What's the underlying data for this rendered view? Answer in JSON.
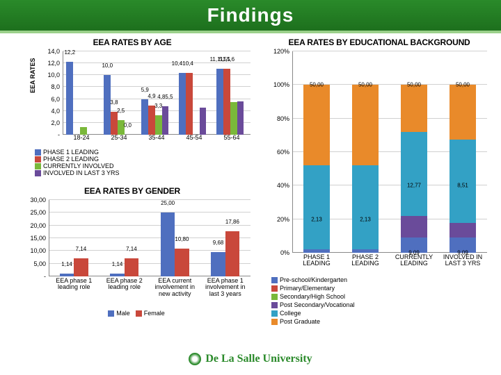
{
  "page_title": "Findings",
  "footer_text": "De La Salle University",
  "series_colors": [
    "#4f6fbf",
    "#c9483b",
    "#7ab83a",
    "#6a4b9a",
    "#33a1c5",
    "#e98a2a"
  ],
  "patterns": [
    "solid",
    "solid",
    "solid",
    "solid",
    "solid",
    "solid"
  ],
  "chart_age": {
    "title": "EEA RATES BY AGE",
    "type": "bar",
    "ylabel": "EEA RATES",
    "ylim": [
      0,
      14
    ],
    "yticks": [
      "-",
      "2,0",
      "4,0",
      "6,0",
      "8,0",
      "10,0",
      "12,0",
      "14,0"
    ],
    "categories": [
      "18-24",
      "25-34",
      "35-44",
      "45-54",
      "55-64"
    ],
    "series": [
      "PHASE 1 LEADING",
      "PHASE 2 LEADING",
      "CURRENTLY INVOLVED",
      "INVOLVED IN LAST 3 YRS"
    ],
    "data": [
      [
        12.2,
        null,
        1.3,
        null
      ],
      [
        10.0,
        3.8,
        2.5,
        0.0
      ],
      [
        5.9,
        4.9,
        3.3,
        4.8
      ],
      [
        10.4,
        10.4,
        null,
        4.5
      ],
      [
        11.1,
        11.1,
        5.5,
        5.6
      ]
    ],
    "labels_over": [
      [
        [
          "12,2"
        ]
      ],
      [
        [
          "10,0"
        ],
        [
          "3,8"
        ],
        [
          "2,5"
        ],
        [
          "0,0"
        ]
      ],
      [
        [
          "5,9"
        ],
        [
          "4,9"
        ],
        [
          "3,3"
        ],
        [
          "4,85,5"
        ]
      ],
      [
        [
          "10,410,4"
        ]
      ],
      [
        [
          "11,111,1"
        ],
        [
          "5,55,6"
        ]
      ]
    ]
  },
  "chart_gender": {
    "title": "EEA RATES BY GENDER",
    "type": "bar",
    "ylim": [
      0,
      30
    ],
    "yticks": [
      "-",
      "5,00",
      "10,00",
      "15,00",
      "20,00",
      "25,00",
      "30,00"
    ],
    "categories": [
      "EEA phase 1 leading role",
      "EEA phase 2 leading role",
      "EEA current involvement in new activity",
      "EEA phase 1 involvement in last 3 years"
    ],
    "series": [
      "Male",
      "Female"
    ],
    "data": [
      [
        1.14,
        7.14
      ],
      [
        1.14,
        7.14
      ],
      [
        25.0,
        10.8
      ],
      [
        9.68,
        17.86
      ]
    ],
    "labels_over": [
      [
        "1,14",
        "7,14"
      ],
      [
        "1,14",
        "7,14"
      ],
      [
        "25,00",
        "10,80"
      ],
      [
        "9,68",
        "17,86"
      ]
    ]
  },
  "chart_edu": {
    "title": "EEA RATES BY EDUCATIONAL BACKGROUND",
    "type": "stacked-bar-pct",
    "ylim": [
      0,
      120
    ],
    "yticks": [
      "0%",
      "20%",
      "40%",
      "60%",
      "80%",
      "100%",
      "120%"
    ],
    "categories": [
      "PHASE 1 LEADING",
      "PHASE 2 LEADING",
      "CURRENTLY LEADING",
      "INVOLVED IN LAST 3 YRS"
    ],
    "series": [
      "Pre-school/Kindergarten",
      "Primary/Elementary",
      "Secondary/High School",
      "Post Secondary/Vocational",
      "College",
      "Post Graduate"
    ],
    "data": [
      [
        2.13,
        0,
        0,
        0,
        50.0,
        47.87
      ],
      [
        2.13,
        0,
        0,
        0,
        50.0,
        47.87
      ],
      [
        9.09,
        0,
        0,
        12.77,
        50.0,
        28.14
      ],
      [
        9.09,
        0,
        0,
        8.51,
        50.0,
        32.4
      ]
    ],
    "inset_labels": [
      {
        "cat": 0,
        "y": 100,
        "text": "50,00"
      },
      {
        "cat": 1,
        "y": 100,
        "text": "50,00"
      },
      {
        "cat": 2,
        "y": 100,
        "text": "50,00"
      },
      {
        "cat": 3,
        "y": 100,
        "text": "50,00"
      },
      {
        "cat": 0,
        "y": 20,
        "text": "2,13"
      },
      {
        "cat": 1,
        "y": 20,
        "text": "2,13"
      },
      {
        "cat": 2,
        "y": 40,
        "text": "12,77"
      },
      {
        "cat": 3,
        "y": 40,
        "text": "8,51"
      },
      {
        "cat": 2,
        "y": 0,
        "text": "9,09"
      },
      {
        "cat": 3,
        "y": 0,
        "text": "9,09"
      }
    ]
  }
}
